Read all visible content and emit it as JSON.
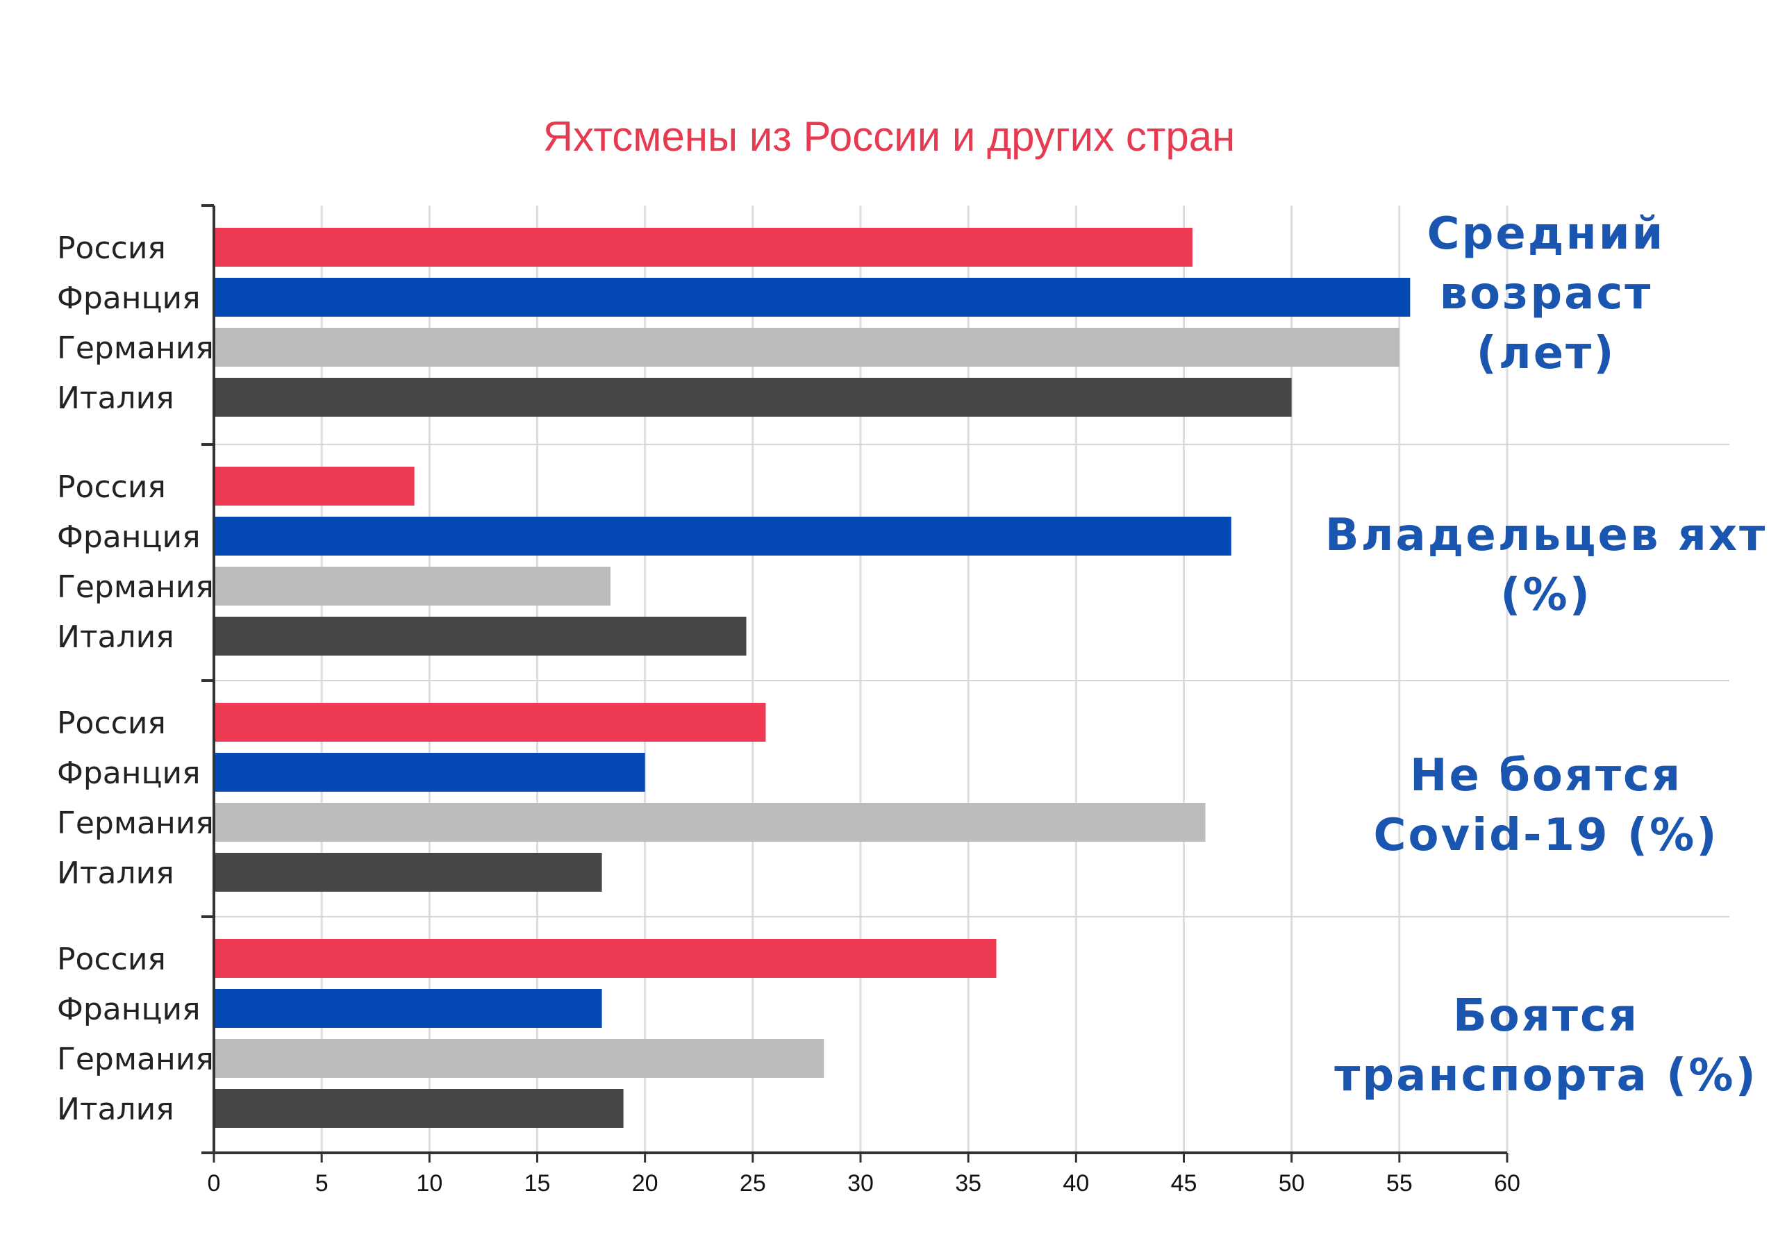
{
  "chart_data": {
    "type": "bar",
    "orientation": "horizontal",
    "title": "Яхтсмены из России и других стран",
    "categories": [
      "Россия",
      "Франция",
      "Германия",
      "Италия"
    ],
    "colors": {
      "Россия": "#ee3a52",
      "Франция": "#0449b4",
      "Германия": "#bcbcbc",
      "Италия": "#474747",
      "title": "#e63a50",
      "group_label": "#1a56b0"
    },
    "groups": [
      {
        "label_lines": [
          "Средний",
          "возраст",
          "(лет)"
        ],
        "values": [
          45.4,
          55.5,
          55,
          50
        ]
      },
      {
        "label_lines": [
          "Владельцев яхт",
          "(%)"
        ],
        "values": [
          9.3,
          47.2,
          18.4,
          24.7
        ]
      },
      {
        "label_lines": [
          "Не боятся",
          "Covid-19 (%)"
        ],
        "values": [
          25.6,
          20,
          46,
          18
        ]
      },
      {
        "label_lines": [
          "Боятся",
          "транспорта (%)"
        ],
        "values": [
          36.3,
          18,
          28.3,
          19
        ]
      }
    ],
    "xlim": [
      0,
      60
    ],
    "xticks": [
      "0",
      "5",
      "10",
      "15",
      "20",
      "25",
      "30",
      "35",
      "40",
      "45",
      "50",
      "55",
      "60"
    ],
    "grid": true
  }
}
